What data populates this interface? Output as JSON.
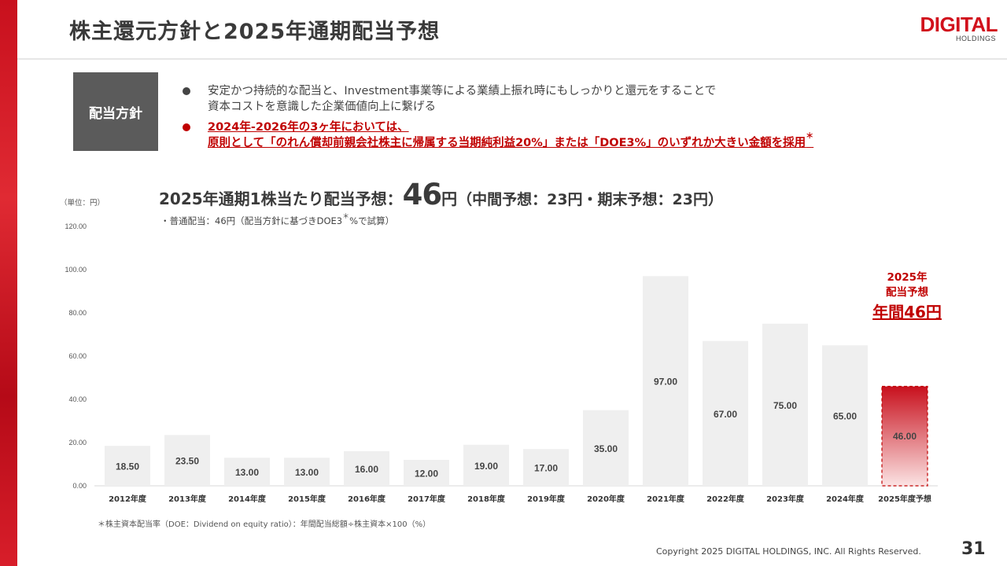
{
  "slide": {
    "title": "株主還元方針と2025年通期配当予想",
    "logo_main": "DIGITAL",
    "logo_sub": "HOLDINGS",
    "page_number": "31",
    "copyright": "Copyright 2025 DIGITAL HOLDINGS, INC. All Rights Reserved."
  },
  "policy": {
    "box_label": "配当方針",
    "bullet1": [
      "安定かつ持続的な配当と、Investment事業等による業績上振れ時にもしっかりと還元をすることで",
      "資本コストを意識した企業価値向上に繋げる"
    ],
    "bullet2_line1": "2024年-2026年の3ヶ年においては、",
    "bullet2_line2_pre": "原則として「のれん償却前親会社株主に帰属する当期純利益20%」または「DOE3%」のいずれか大きい金額を採用",
    "bullet2_star": "＊"
  },
  "headline": {
    "pre": "2025年通期1株当たり配当予想：",
    "amount": "46",
    "yen": "円",
    "post": "（中間予想：23円・期末予想：23円）",
    "subnote_pre": "・普通配当：46円（配当方針に基づきDOE3",
    "subnote_star": "＊",
    "subnote_post": "%で試算）"
  },
  "unit_label": "（単位：円）",
  "forecast_label": {
    "line1": "2025年",
    "line2": "配当予想",
    "line3": "年間46円"
  },
  "footnote": "＊株主資本配当率（DOE：Dividend on equity ratio）：年間配当総額÷株主資本×100（%）",
  "colors": {
    "accent_red": "#c00000",
    "bar_gray": "#efefef",
    "forecast_top": "#c8101d",
    "forecast_bottom": "#fbe3e3"
  },
  "chart_data": {
    "type": "bar",
    "categories": [
      "2012年度",
      "2013年度",
      "2014年度",
      "2015年度",
      "2016年度",
      "2017年度",
      "2018年度",
      "2019年度",
      "2020年度",
      "2021年度",
      "2022年度",
      "2023年度",
      "2024年度",
      "2025年度予想"
    ],
    "values": [
      18.5,
      23.5,
      13.0,
      13.0,
      16.0,
      12.0,
      19.0,
      17.0,
      35.0,
      97.0,
      67.0,
      75.0,
      65.0,
      46.0
    ],
    "value_labels": [
      "18.50",
      "23.50",
      "13.00",
      "13.00",
      "16.00",
      "12.00",
      "19.00",
      "17.00",
      "35.00",
      "97.00",
      "67.00",
      "75.00",
      "65.00",
      "46.00"
    ],
    "forecast_index": 13,
    "ylim": [
      0,
      120
    ],
    "yticks": [
      "0.00",
      "20.00",
      "40.00",
      "60.00",
      "80.00",
      "100.00",
      "120.00"
    ],
    "ytick_values": [
      0,
      20,
      40,
      60,
      80,
      100,
      120
    ],
    "grid": false,
    "title": "",
    "xlabel": "",
    "ylabel": ""
  }
}
